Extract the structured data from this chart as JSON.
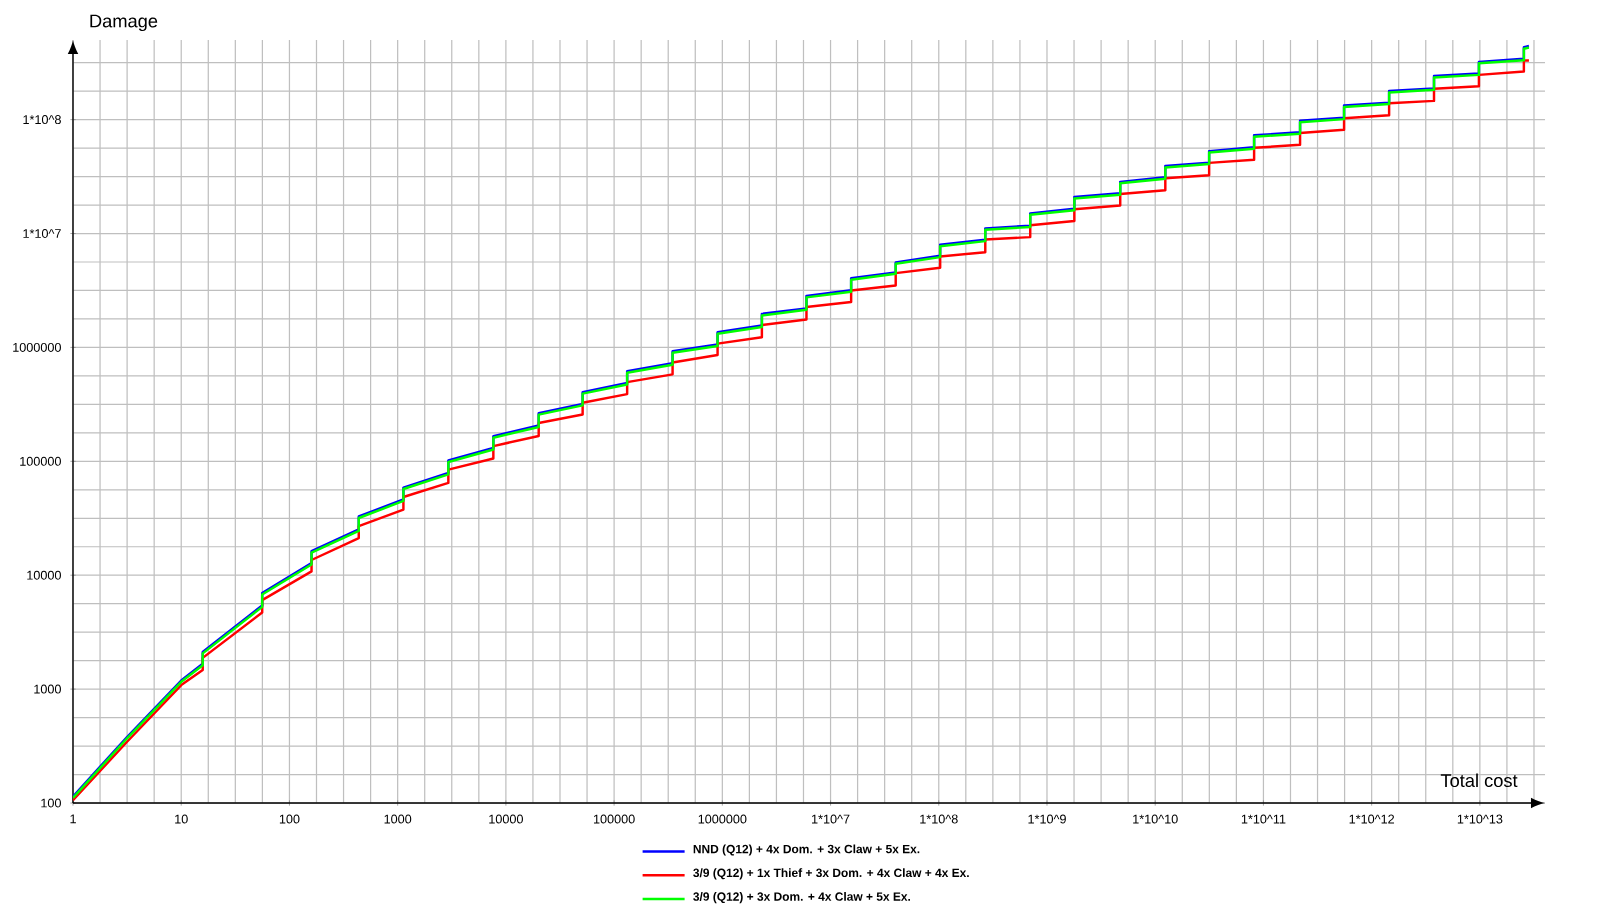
{
  "chart_data": {
    "type": "line",
    "xlabel": "Total cost",
    "ylabel": "Damage",
    "log": "xy",
    "grid": true,
    "legend": "bottom",
    "xlim": [
      1,
      40000000000000.0
    ],
    "ylim": [
      100,
      500000000.0
    ],
    "xticks": [
      1,
      10,
      100,
      1000,
      10000,
      100000,
      1000000,
      {
        "value": 10000000.0,
        "label": "1*10^7"
      },
      {
        "value": 100000000.0,
        "label": "1*10^8"
      },
      {
        "value": 1000000000.0,
        "label": "1*10^9"
      },
      {
        "value": 10000000000.0,
        "label": "1*10^10"
      },
      {
        "value": 100000000000.0,
        "label": "1*10^11"
      },
      {
        "value": 1000000000000.0,
        "label": "1*10^12"
      },
      {
        "value": 10000000000000.0,
        "label": "1*10^13"
      }
    ],
    "yticks": [
      100,
      1000,
      10000,
      100000,
      1000000,
      {
        "value": 10000000.0,
        "label": "1*10^7"
      },
      {
        "value": 100000000.0,
        "label": "1*10^8"
      }
    ],
    "series": [
      {
        "name": "NND (Q12) + 4x Dom. + 3x Claw + 5x Ex.",
        "color": "#0000ff",
        "x": [
          1,
          3.16,
          10,
          15.8,
          15.8,
          56,
          56,
          160,
          160,
          437,
          437,
          1130,
          1130,
          2940,
          2940,
          7660,
          7660,
          20100,
          20100,
          51200,
          51200,
          132000,
          132000,
          347000,
          347000,
          904000,
          904000,
          2320000.0,
          2320000.0,
          5990000.0,
          5990000.0,
          15500000.0,
          15500000.0,
          40000000.0,
          40000000.0,
          103000000.0,
          103000000.0,
          269000000.0,
          269000000.0,
          700000000.0,
          700000000.0,
          1790000000.0,
          1790000000.0,
          4750000000.0,
          4750000000.0,
          12400000000.0,
          12400000000.0,
          31500000000.0,
          31500000000.0,
          82000000000.0,
          82000000000.0,
          218000000000.0,
          218000000000.0,
          556000000000.0,
          556000000000.0,
          1450000000000.0,
          1450000000000.0,
          3770000000000.0,
          3770000000000.0,
          9800000000000.0,
          9800000000000.0,
          25500000000000.0,
          25500000000000.0,
          28400000000000.0
        ],
        "values": [
          114,
          380,
          1190,
          1670,
          2120,
          5430,
          6980,
          12800,
          16300,
          25200,
          32800,
          46200,
          58800,
          79200,
          101600,
          131000,
          166000,
          206000,
          265000,
          319000,
          405000,
          487000,
          618000,
          726000,
          925000,
          1060000,
          1360000,
          1560000.0,
          1970000.0,
          2200000.0,
          2830000.0,
          3170000.0,
          4050000.0,
          4560000.0,
          5580000.0,
          6390000.0,
          7970000.0,
          8830000.0,
          11100000.0,
          11700000.0,
          15000000.0,
          16500000.0,
          20900000.0,
          22600000.0,
          28400000.0,
          31200000.0,
          39100000.0,
          41900000.0,
          52900000.0,
          57300000.0,
          72800000.0,
          77500000.0,
          97900000.0,
          104000000.0,
          133000000.0,
          141000000.0,
          178000000.0,
          188000000.0,
          241000000.0,
          254000000.0,
          321000000.0,
          342000000.0,
          432000000.0,
          443000000.0
        ]
      },
      {
        "name": "3/9 (Q12) + 1x Thief + 3x Dom. + 4x Claw + 4x Ex.",
        "color": "#ff0000",
        "x": [
          1,
          3.16,
          10,
          15.8,
          15.8,
          56,
          56,
          160,
          160,
          437,
          437,
          1130,
          1130,
          2940,
          2940,
          7660,
          7660,
          20100,
          20100,
          51200,
          51200,
          132000,
          132000,
          347000,
          347000,
          904000,
          904000,
          2320000.0,
          2320000.0,
          5990000.0,
          5990000.0,
          15500000.0,
          15500000.0,
          40000000.0,
          40000000.0,
          103000000.0,
          103000000.0,
          269000000.0,
          269000000.0,
          700000000.0,
          700000000.0,
          1790000000.0,
          1790000000.0,
          4750000000.0,
          4750000000.0,
          12400000000.0,
          12400000000.0,
          31500000000.0,
          31500000000.0,
          82000000000.0,
          82000000000.0,
          218000000000.0,
          218000000000.0,
          556000000000.0,
          556000000000.0,
          1450000000000.0,
          1450000000000.0,
          3770000000000.0,
          3770000000000.0,
          9800000000000.0,
          9800000000000.0,
          25500000000000.0,
          25500000000000.0,
          28400000000000.0
        ],
        "values": [
          106,
          345,
          1085,
          1470,
          1880,
          4710,
          6040,
          10800,
          13600,
          21200,
          27000,
          37700,
          48600,
          64600,
          84500,
          106000,
          136000,
          167000,
          217000,
          258000,
          327000,
          389000,
          496000,
          580000,
          738000,
          857000,
          1080000,
          1230000.0,
          1570000.0,
          1760000.0,
          2260000.0,
          2500000.0,
          3160000.0,
          3500000.0,
          4490000.0,
          5000000.0,
          6280000.0,
          6860000.0,
          8850000.0,
          9300000.0,
          11800000.0,
          12900000.0,
          16300000.0,
          17600000.0,
          22200000.0,
          24000000.0,
          30500000.0,
          32500000.0,
          41700000.0,
          44400000.0,
          56500000.0,
          60100000.0,
          76400000.0,
          81500000.0,
          103000000.0,
          109000000.0,
          139000000.0,
          146000000.0,
          187000000.0,
          196000000.0,
          247000000.0,
          264000000.0,
          330000000.0,
          330000000.0
        ]
      },
      {
        "name": "3/9 (Q12) + 3x Dom. + 4x Claw + 5x Ex.",
        "color": "#00ff00",
        "x": [
          1,
          3.16,
          10,
          15.8,
          15.8,
          56,
          56,
          160,
          160,
          437,
          437,
          1130,
          1130,
          2940,
          2940,
          7660,
          7660,
          20100,
          20100,
          51200,
          51200,
          132000,
          132000,
          347000,
          347000,
          904000,
          904000,
          2320000.0,
          2320000.0,
          5990000.0,
          5990000.0,
          15500000.0,
          15500000.0,
          40000000.0,
          40000000.0,
          103000000.0,
          103000000.0,
          269000000.0,
          269000000.0,
          700000000.0,
          700000000.0,
          1790000000.0,
          1790000000.0,
          4750000000.0,
          4750000000.0,
          12400000000.0,
          12400000000.0,
          31500000000.0,
          31500000000.0,
          82000000000.0,
          82000000000.0,
          218000000000.0,
          218000000000.0,
          556000000000.0,
          556000000000.0,
          1450000000000.0,
          1450000000000.0,
          3770000000000.0,
          3770000000000.0,
          9800000000000.0,
          9800000000000.0,
          25500000000000.0,
          25500000000000.0,
          28400000000000.0
        ],
        "values": [
          111,
          370,
          1160,
          1620,
          2060,
          5270,
          6780,
          12400,
          15800,
          24500,
          31800,
          44900,
          57100,
          76900,
          98600,
          127000,
          161000,
          200000,
          257000,
          310000,
          393000,
          473000,
          600000,
          705000,
          898000,
          1030000,
          1320000,
          1510000.0,
          1910000.0,
          2140000.0,
          2750000.0,
          3080000.0,
          3930000.0,
          4430000.0,
          5420000.0,
          6200000.0,
          7740000.0,
          8570000.0,
          10800000.0,
          11400000.0,
          14600000.0,
          16000000.0,
          20300000.0,
          21900000.0,
          27600000.0,
          30300000.0,
          38000000.0,
          40700000.0,
          51400000.0,
          55600000.0,
          70700000.0,
          75200000.0,
          95000000.0,
          101000000.0,
          129000000.0,
          137000000.0,
          173000000.0,
          183000000.0,
          234000000.0,
          247000000.0,
          312000000.0,
          332000000.0,
          419000000.0,
          430000000.0
        ]
      }
    ]
  }
}
